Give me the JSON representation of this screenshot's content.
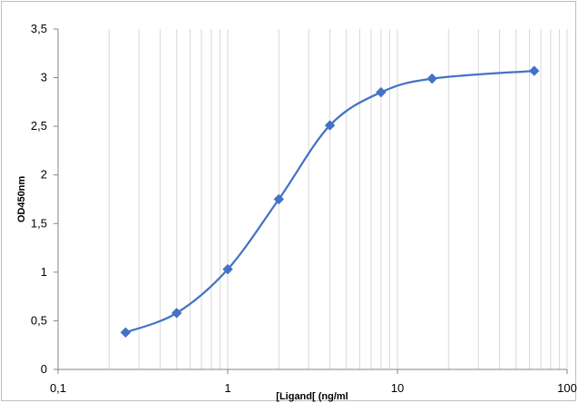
{
  "chart_data": {
    "type": "scatter",
    "title": "",
    "xlabel": "[Ligand[ (ng/ml",
    "ylabel": "OD450nm",
    "x_scale": "log",
    "xlim": [
      0.1,
      100
    ],
    "ylim": [
      0,
      3.5
    ],
    "x_ticks": [
      {
        "value": 0.1,
        "label": "0,1"
      },
      {
        "value": 1,
        "label": "1"
      },
      {
        "value": 10,
        "label": "10"
      },
      {
        "value": 100,
        "label": "100"
      }
    ],
    "y_ticks": [
      {
        "value": 0,
        "label": "0"
      },
      {
        "value": 0.5,
        "label": "0,5"
      },
      {
        "value": 1,
        "label": "1"
      },
      {
        "value": 1.5,
        "label": "1,5"
      },
      {
        "value": 2,
        "label": "2"
      },
      {
        "value": 2.5,
        "label": "2,5"
      },
      {
        "value": 3,
        "label": "3"
      },
      {
        "value": 3.5,
        "label": "3,5"
      }
    ],
    "grid": {
      "vertical_minor": true,
      "horizontal": false
    },
    "legend": "none",
    "series": [
      {
        "x": [
          0.25,
          0.5,
          1,
          2,
          4,
          8,
          16,
          64
        ],
        "y": [
          0.38,
          0.58,
          1.03,
          1.75,
          2.51,
          2.85,
          2.99,
          3.07
        ],
        "marker": "diamond",
        "smooth": true,
        "color": "#4472c4"
      }
    ],
    "colors": {
      "grid": "#d9d9d9",
      "axis": "#868686",
      "series": "#4472c4"
    }
  }
}
